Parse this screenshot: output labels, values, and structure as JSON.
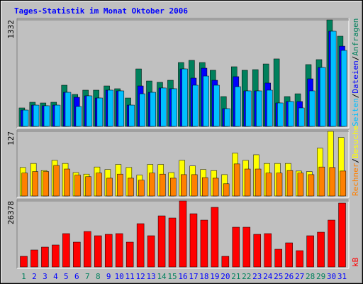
{
  "title": "Tages-Statistik im Monat Oktober 2006",
  "legend_separator": "/",
  "chart_data": [
    {
      "type": "bar",
      "ylim": [
        0,
        1332
      ],
      "yticks": [
        1332
      ],
      "series": [
        {
          "name": "Anfragen",
          "color": "#00805c",
          "values": [
            231,
            302,
            293,
            302,
            515,
            400,
            453,
            453,
            506,
            471,
            355,
            719,
            568,
            551,
            577,
            799,
            826,
            799,
            702,
            373,
            746,
            702,
            710,
            781,
            844,
            373,
            408,
            773,
            835,
            1332,
            1128
          ]
        },
        {
          "name": "Dateien",
          "color": "#0000ff",
          "values": [
            204,
            266,
            258,
            266,
            426,
            364,
            382,
            355,
            453,
            444,
            266,
            506,
            426,
            480,
            471,
            719,
            604,
            728,
            577,
            222,
            622,
            444,
            444,
            542,
            293,
            311,
            311,
            595,
            737,
            1190,
            1003
          ]
        },
        {
          "name": "Seiten",
          "color": "#00c0ff",
          "values": [
            204,
            266,
            258,
            266,
            426,
            249,
            382,
            355,
            453,
            444,
            266,
            408,
            426,
            480,
            471,
            719,
            515,
            630,
            515,
            222,
            497,
            444,
            444,
            453,
            293,
            311,
            231,
            444,
            737,
            1190,
            950
          ]
        }
      ]
    },
    {
      "type": "bar",
      "ylim": [
        0,
        127
      ],
      "yticks": [
        127
      ],
      "series": [
        {
          "name": "Besuche",
          "color": "#ffff00",
          "values": [
            56,
            64,
            50,
            70,
            64,
            46,
            43,
            57,
            52,
            62,
            56,
            41,
            62,
            62,
            46,
            70,
            59,
            52,
            50,
            42,
            84,
            70,
            81,
            64,
            64,
            64,
            49,
            48,
            94,
            127,
            115
          ]
        },
        {
          "name": "Rechner",
          "color": "#ff8000",
          "values": [
            45,
            48,
            48,
            60,
            53,
            41,
            38,
            45,
            35,
            43,
            35,
            31,
            45,
            43,
            35,
            42,
            42,
            36,
            35,
            24,
            63,
            53,
            53,
            45,
            45,
            50,
            45,
            42,
            57,
            56,
            49
          ]
        }
      ]
    },
    {
      "type": "bar",
      "ylim": [
        0,
        26378
      ],
      "yticks": [
        26378
      ],
      "categories": [
        "1",
        "2",
        "3",
        "4",
        "5",
        "6",
        "7",
        "8",
        "9",
        "10",
        "11",
        "12",
        "13",
        "14",
        "15",
        "16",
        "17",
        "18",
        "19",
        "20",
        "21",
        "22",
        "23",
        "24",
        "25",
        "26",
        "27",
        "28",
        "29",
        "30",
        "31"
      ],
      "category_colors": [
        "#00805c",
        "#0000ff",
        "#0000ff",
        "#0000ff",
        "#0000ff",
        "#0000ff",
        "#00805c",
        "#00805c",
        "#0000ff",
        "#0000ff",
        "#0000ff",
        "#0000ff",
        "#0000ff",
        "#00805c",
        "#00805c",
        "#0000ff",
        "#0000ff",
        "#0000ff",
        "#0000ff",
        "#0000ff",
        "#00805c",
        "#00805c",
        "#0000ff",
        "#0000ff",
        "#0000ff",
        "#0000ff",
        "#0000ff",
        "#00805c",
        "#00805c",
        "#0000ff",
        "#0000ff"
      ],
      "series": [
        {
          "name": "kB",
          "color": "#ff0000",
          "values": [
            4254,
            6807,
            7941,
            8792,
            13330,
            9926,
            14180,
            12478,
            13046,
            13330,
            9926,
            17300,
            12478,
            20419,
            19568,
            26378,
            21270,
            18718,
            23822,
            4254,
            15882,
            15882,
            13046,
            13330,
            7090,
            9642,
            6523,
            12478,
            13896,
            18718,
            25524
          ]
        }
      ]
    }
  ]
}
